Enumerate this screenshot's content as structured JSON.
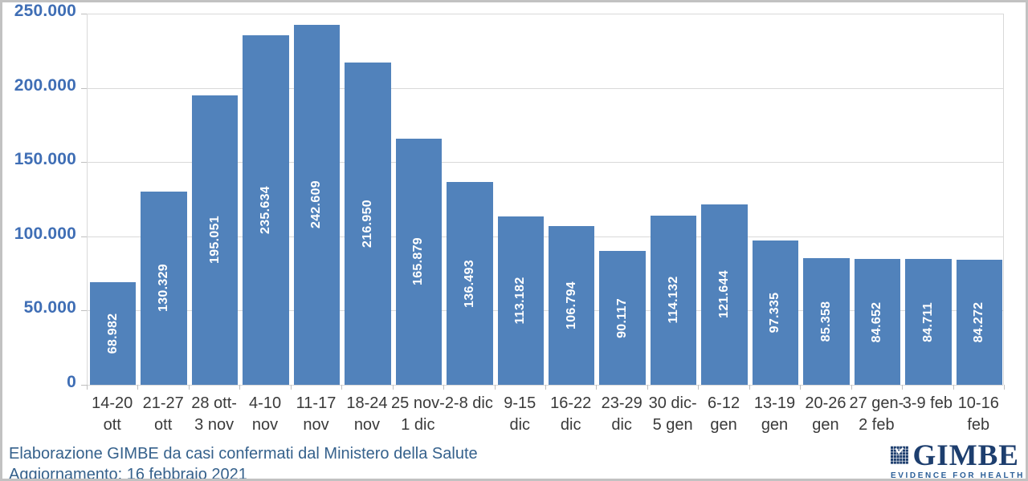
{
  "chart_data": {
    "type": "bar",
    "title": "",
    "xlabel": "",
    "ylabel": "",
    "grid": "on",
    "legend": "none",
    "categories": [
      "14-20\nott",
      "21-27\nott",
      "28 ott-\n3 nov",
      "4-10\nnov",
      "11-17\nnov",
      "18-24\nnov",
      "25 nov-\n1 dic",
      "2-8 dic",
      "9-15\ndic",
      "16-22\ndic",
      "23-29\ndic",
      "30 dic-\n5 gen",
      "6-12\ngen",
      "13-19\ngen",
      "20-26\ngen",
      "27 gen-\n2 feb",
      "3-9 feb",
      "10-16\nfeb"
    ],
    "values": [
      68982,
      130329,
      195051,
      235634,
      242609,
      216950,
      165879,
      136493,
      113182,
      106794,
      90117,
      114132,
      121644,
      97335,
      85358,
      84652,
      84711,
      84272
    ],
    "value_labels": [
      "68.982",
      "130.329",
      "195.051",
      "235.634",
      "242.609",
      "216.950",
      "165.879",
      "136.493",
      "113.182",
      "106.794",
      "90.117",
      "114.132",
      "121.644",
      "97.335",
      "85.358",
      "84.652",
      "84.711",
      "84.272"
    ],
    "y_axis": {
      "min": 0,
      "max": 250000,
      "tick_values": [
        0,
        50000,
        100000,
        150000,
        200000,
        250000
      ],
      "tick_labels": [
        "0",
        "50.000",
        "100.000",
        "150.000",
        "200.000",
        "250.000"
      ]
    }
  },
  "footer": {
    "source": "Elaborazione GIMBE da casi confermati dal Ministero della Salute",
    "update": "Aggiornamento: 16 febbraio 2021"
  },
  "logo": {
    "name": "GIMBE",
    "tagline": "EVIDENCE FOR HEALTH",
    "icon": "gimbe-grid-check-icon"
  },
  "colors": {
    "bar": "#5182bb",
    "y_axis_label": "#3f6eb5",
    "x_axis_label": "#3a3a3a",
    "gridline": "#d9d9d9",
    "tick": "#bfbfbf",
    "footer_text": "#35618c",
    "logo_navy": "#1d3e6e",
    "logo_tagline": "#2b5f98",
    "frame_border": "#c2c2c2",
    "value_label": "#ffffff"
  }
}
